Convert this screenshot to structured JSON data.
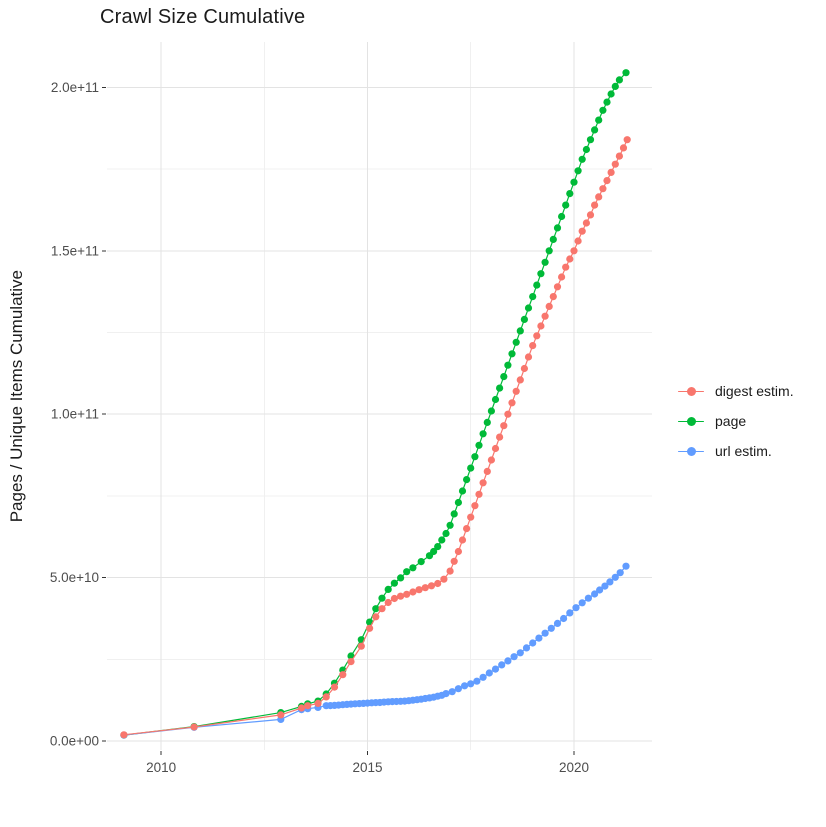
{
  "chart_data": {
    "type": "scatter",
    "title": "Crawl Size Cumulative",
    "xlabel": "",
    "ylabel": "Pages / Unique Items Cumulative",
    "values_unit": "pages, stored in billions (1e9)",
    "legend_position": "right",
    "grid": {
      "major_color": "#e3e3e3",
      "minor_color": "#f0f0f0",
      "background": "#ffffff"
    },
    "axis_text_color": "#4d4d4d",
    "tick_mark_color": "#333333",
    "x_axis": {
      "lim": [
        2008.69,
        2021.89
      ],
      "ticks": [
        {
          "v": 2010,
          "label": "2010"
        },
        {
          "v": 2015,
          "label": "2015"
        },
        {
          "v": 2020,
          "label": "2020"
        }
      ],
      "minor": [
        2012.5,
        2017.5
      ]
    },
    "y_axis": {
      "lim": [
        -2.75,
        213.9
      ],
      "ticks": [
        {
          "v": 0,
          "label": "0.0e+00"
        },
        {
          "v": 50,
          "label": "5.0e+10"
        },
        {
          "v": 100,
          "label": "1.0e+11"
        },
        {
          "v": 150,
          "label": "1.5e+11"
        },
        {
          "v": 200,
          "label": "2.0e+11"
        }
      ],
      "minor": [
        25,
        75,
        125,
        175
      ]
    },
    "series": [
      {
        "name": "digest estim.",
        "color": "#F8766D",
        "points": [
          [
            2009.1,
            1.9
          ],
          [
            2010.8,
            4.3
          ],
          [
            2012.9,
            8.0
          ],
          [
            2013.4,
            10.1
          ],
          [
            2013.55,
            10.8
          ],
          [
            2013.8,
            11.5
          ],
          [
            2014.0,
            13.5
          ],
          [
            2014.2,
            16.5
          ],
          [
            2014.4,
            20.3
          ],
          [
            2014.6,
            24.3
          ],
          [
            2014.85,
            29.0
          ],
          [
            2015.05,
            34.5
          ],
          [
            2015.2,
            38.0
          ],
          [
            2015.35,
            40.5
          ],
          [
            2015.5,
            42.4
          ],
          [
            2015.65,
            43.6
          ],
          [
            2015.8,
            44.3
          ],
          [
            2015.95,
            44.9
          ],
          [
            2016.1,
            45.6
          ],
          [
            2016.25,
            46.3
          ],
          [
            2016.4,
            46.9
          ],
          [
            2016.55,
            47.5
          ],
          [
            2016.7,
            48.2
          ],
          [
            2016.85,
            49.5
          ],
          [
            2017.0,
            52.0
          ],
          [
            2017.1,
            55.0
          ],
          [
            2017.2,
            58.0
          ],
          [
            2017.3,
            61.5
          ],
          [
            2017.4,
            65.0
          ],
          [
            2017.5,
            68.5
          ],
          [
            2017.6,
            72.0
          ],
          [
            2017.7,
            75.5
          ],
          [
            2017.8,
            79.0
          ],
          [
            2017.9,
            82.5
          ],
          [
            2018.0,
            86.0
          ],
          [
            2018.1,
            89.5
          ],
          [
            2018.2,
            93.0
          ],
          [
            2018.3,
            96.5
          ],
          [
            2018.4,
            100.0
          ],
          [
            2018.5,
            103.5
          ],
          [
            2018.6,
            107.0
          ],
          [
            2018.7,
            110.5
          ],
          [
            2018.8,
            114.0
          ],
          [
            2018.9,
            117.5
          ],
          [
            2019.0,
            121.0
          ],
          [
            2019.1,
            124.0
          ],
          [
            2019.2,
            127.0
          ],
          [
            2019.3,
            130.0
          ],
          [
            2019.4,
            133.0
          ],
          [
            2019.5,
            136.0
          ],
          [
            2019.6,
            139.0
          ],
          [
            2019.7,
            142.0
          ],
          [
            2019.8,
            145.0
          ],
          [
            2019.9,
            147.5
          ],
          [
            2020.0,
            150.0
          ],
          [
            2020.1,
            153.0
          ],
          [
            2020.2,
            156.0
          ],
          [
            2020.3,
            158.5
          ],
          [
            2020.4,
            161.0
          ],
          [
            2020.5,
            164.0
          ],
          [
            2020.6,
            166.5
          ],
          [
            2020.7,
            169.0
          ],
          [
            2020.8,
            171.5
          ],
          [
            2020.9,
            174.0
          ],
          [
            2021.0,
            176.5
          ],
          [
            2021.1,
            179.0
          ],
          [
            2021.2,
            181.5
          ],
          [
            2021.29,
            184.0
          ]
        ]
      },
      {
        "name": "page",
        "color": "#00BA38",
        "points": [
          [
            2009.1,
            1.8
          ],
          [
            2010.8,
            4.4
          ],
          [
            2012.9,
            8.7
          ],
          [
            2013.4,
            10.6
          ],
          [
            2013.55,
            11.4
          ],
          [
            2013.8,
            12.2
          ],
          [
            2014.0,
            14.4
          ],
          [
            2014.2,
            17.7
          ],
          [
            2014.4,
            21.7
          ],
          [
            2014.6,
            26.0
          ],
          [
            2014.85,
            31.0
          ],
          [
            2015.05,
            36.4
          ],
          [
            2015.2,
            40.5
          ],
          [
            2015.35,
            43.7
          ],
          [
            2015.5,
            46.4
          ],
          [
            2015.65,
            48.3
          ],
          [
            2015.8,
            49.9
          ],
          [
            2015.95,
            51.8
          ],
          [
            2016.1,
            53.0
          ],
          [
            2016.3,
            54.9
          ],
          [
            2016.5,
            56.7
          ],
          [
            2016.6,
            58.0
          ],
          [
            2016.7,
            59.5
          ],
          [
            2016.8,
            61.5
          ],
          [
            2016.9,
            63.5
          ],
          [
            2017.0,
            66.0
          ],
          [
            2017.1,
            69.5
          ],
          [
            2017.2,
            73.0
          ],
          [
            2017.3,
            76.5
          ],
          [
            2017.4,
            80.0
          ],
          [
            2017.5,
            83.5
          ],
          [
            2017.6,
            87.0
          ],
          [
            2017.7,
            90.5
          ],
          [
            2017.8,
            94.0
          ],
          [
            2017.9,
            97.5
          ],
          [
            2018.0,
            101.0
          ],
          [
            2018.1,
            104.5
          ],
          [
            2018.2,
            108.0
          ],
          [
            2018.3,
            111.5
          ],
          [
            2018.4,
            115.0
          ],
          [
            2018.5,
            118.5
          ],
          [
            2018.6,
            122.0
          ],
          [
            2018.7,
            125.5
          ],
          [
            2018.8,
            129.0
          ],
          [
            2018.9,
            132.5
          ],
          [
            2019.0,
            136.0
          ],
          [
            2019.1,
            139.5
          ],
          [
            2019.2,
            143.0
          ],
          [
            2019.3,
            146.5
          ],
          [
            2019.4,
            150.0
          ],
          [
            2019.5,
            153.5
          ],
          [
            2019.6,
            157.0
          ],
          [
            2019.7,
            160.5
          ],
          [
            2019.8,
            164.0
          ],
          [
            2019.9,
            167.5
          ],
          [
            2020.0,
            171.0
          ],
          [
            2020.1,
            174.5
          ],
          [
            2020.2,
            178.0
          ],
          [
            2020.3,
            181.0
          ],
          [
            2020.4,
            184.0
          ],
          [
            2020.5,
            187.0
          ],
          [
            2020.6,
            190.0
          ],
          [
            2020.7,
            193.0
          ],
          [
            2020.8,
            195.5
          ],
          [
            2020.9,
            198.0
          ],
          [
            2021.0,
            200.3
          ],
          [
            2021.1,
            202.3
          ],
          [
            2021.26,
            204.5
          ]
        ]
      },
      {
        "name": "url estim.",
        "color": "#619CFF",
        "points": [
          [
            2009.1,
            1.8
          ],
          [
            2010.8,
            4.2
          ],
          [
            2012.9,
            6.6
          ],
          [
            2013.4,
            9.6
          ],
          [
            2013.55,
            9.9
          ],
          [
            2013.8,
            10.3
          ],
          [
            2014.0,
            10.8
          ],
          [
            2014.1,
            10.85
          ],
          [
            2014.2,
            10.9
          ],
          [
            2014.3,
            11.0
          ],
          [
            2014.4,
            11.1
          ],
          [
            2014.5,
            11.2
          ],
          [
            2014.6,
            11.3
          ],
          [
            2014.7,
            11.4
          ],
          [
            2014.8,
            11.45
          ],
          [
            2014.9,
            11.5
          ],
          [
            2015.0,
            11.6
          ],
          [
            2015.1,
            11.7
          ],
          [
            2015.2,
            11.75
          ],
          [
            2015.3,
            11.8
          ],
          [
            2015.4,
            11.9
          ],
          [
            2015.5,
            12.0
          ],
          [
            2015.6,
            12.05
          ],
          [
            2015.7,
            12.1
          ],
          [
            2015.8,
            12.15
          ],
          [
            2015.9,
            12.2
          ],
          [
            2016.0,
            12.35
          ],
          [
            2016.1,
            12.5
          ],
          [
            2016.2,
            12.65
          ],
          [
            2016.3,
            12.8
          ],
          [
            2016.4,
            13.0
          ],
          [
            2016.5,
            13.2
          ],
          [
            2016.6,
            13.4
          ],
          [
            2016.7,
            13.7
          ],
          [
            2016.8,
            14.0
          ],
          [
            2016.9,
            14.5
          ],
          [
            2017.05,
            15.1
          ],
          [
            2017.2,
            16.0
          ],
          [
            2017.35,
            16.9
          ],
          [
            2017.5,
            17.5
          ],
          [
            2017.65,
            18.3
          ],
          [
            2017.8,
            19.5
          ],
          [
            2017.95,
            20.8
          ],
          [
            2018.1,
            22.0
          ],
          [
            2018.25,
            23.3
          ],
          [
            2018.4,
            24.5
          ],
          [
            2018.55,
            25.8
          ],
          [
            2018.7,
            27.0
          ],
          [
            2018.85,
            28.5
          ],
          [
            2019.0,
            30.0
          ],
          [
            2019.15,
            31.5
          ],
          [
            2019.3,
            33.0
          ],
          [
            2019.45,
            34.5
          ],
          [
            2019.6,
            36.0
          ],
          [
            2019.75,
            37.5
          ],
          [
            2019.9,
            39.2
          ],
          [
            2020.05,
            40.8
          ],
          [
            2020.2,
            42.3
          ],
          [
            2020.35,
            43.7
          ],
          [
            2020.5,
            45.0
          ],
          [
            2020.62,
            46.2
          ],
          [
            2020.75,
            47.4
          ],
          [
            2020.87,
            48.7
          ],
          [
            2021.0,
            50.1
          ],
          [
            2021.12,
            51.5
          ],
          [
            2021.26,
            53.5
          ]
        ]
      }
    ]
  }
}
